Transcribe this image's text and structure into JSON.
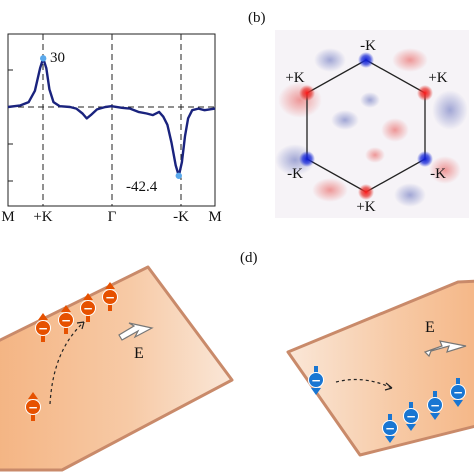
{
  "panel_labels": {
    "b": "(b)",
    "d": "(d)"
  },
  "panel_a": {
    "chart_data": {
      "type": "line",
      "x_ticks": [
        "M",
        "+K",
        "Γ",
        "-K",
        "M"
      ],
      "annotations": [
        {
          "text": "30",
          "x": "+K",
          "y": 30
        },
        {
          "text": "-42.4",
          "x": "-K",
          "y": -42.4
        }
      ],
      "series": [
        {
          "color": "#1a237e",
          "points": [
            [
              0.0,
              0
            ],
            [
              0.06,
              1
            ],
            [
              0.1,
              3
            ],
            [
              0.13,
              10
            ],
            [
              0.155,
              24
            ],
            [
              0.17,
              30
            ],
            [
              0.185,
              24
            ],
            [
              0.2,
              11
            ],
            [
              0.22,
              3
            ],
            [
              0.25,
              0.5
            ],
            [
              0.3,
              0
            ],
            [
              0.33,
              -1
            ],
            [
              0.36,
              -4
            ],
            [
              0.38,
              -7
            ],
            [
              0.4,
              -5
            ],
            [
              0.43,
              -1.5
            ],
            [
              0.47,
              0
            ],
            [
              0.5,
              0.5
            ],
            [
              0.55,
              -0.5
            ],
            [
              0.59,
              -1
            ],
            [
              0.63,
              -3
            ],
            [
              0.67,
              -4
            ],
            [
              0.7,
              -5
            ],
            [
              0.73,
              -3
            ],
            [
              0.75,
              -6
            ],
            [
              0.77,
              -11
            ],
            [
              0.79,
              -22
            ],
            [
              0.81,
              -36
            ],
            [
              0.825,
              -42.4
            ],
            [
              0.84,
              -34
            ],
            [
              0.855,
              -18
            ],
            [
              0.87,
              -7
            ],
            [
              0.89,
              -2
            ],
            [
              0.92,
              -1
            ],
            [
              0.95,
              -2
            ],
            [
              1.0,
              -1
            ]
          ]
        }
      ],
      "highlight_points": [
        {
          "x": 0.17,
          "y": 30
        },
        {
          "x": 0.825,
          "y": -42.4
        }
      ],
      "ylim": [
        -48,
        45
      ],
      "dashed_zero_line": true,
      "dashed_verticals_at": [
        "+K",
        "Γ",
        "-K"
      ]
    }
  },
  "panel_b": {
    "vertex_labels": [
      "-K",
      "+K",
      "+K",
      "-K",
      "-K",
      "+K"
    ]
  },
  "panel_c": {
    "field_label": "E",
    "spin_color": "#e65100",
    "carrier_sign": "−"
  },
  "panel_d": {
    "field_label": "E",
    "spin_color": "#1976d2",
    "carrier_sign": "−"
  }
}
